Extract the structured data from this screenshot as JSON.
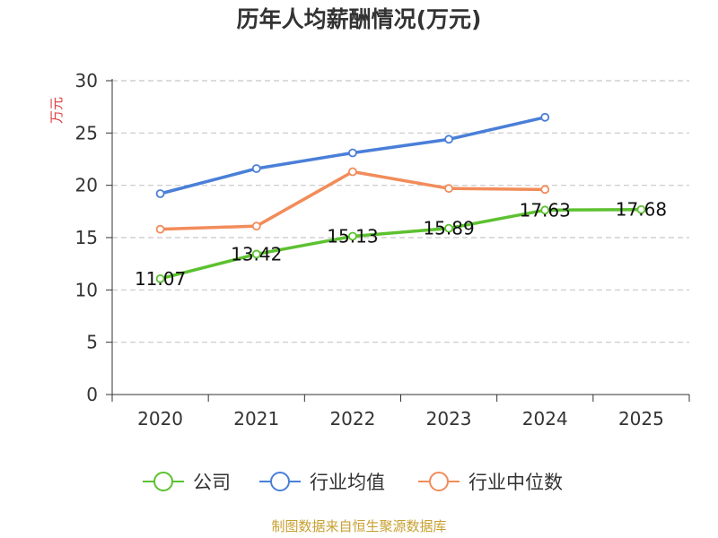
{
  "title": "历年人均薪酬情况(万元)",
  "source": "制图数据来自恒生聚源数据库",
  "chart_data": {
    "type": "line",
    "title": "历年人均薪酬情况(万元)",
    "xlabel": "",
    "ylabel": "万元",
    "categories": [
      "2020",
      "2021",
      "2022",
      "2023",
      "2024",
      "2025"
    ],
    "ylim": [
      0,
      30
    ],
    "yticks": [
      0,
      5,
      10,
      15,
      20,
      25,
      30
    ],
    "grid": true,
    "legend_position": "bottom",
    "series": [
      {
        "name": "公司",
        "color": "#5cc130",
        "values": [
          11.07,
          13.42,
          15.13,
          15.89,
          17.63,
          17.68
        ],
        "labels": [
          "11.07",
          "13.42",
          "15.13",
          "15.89",
          "17.63",
          "17.68"
        ]
      },
      {
        "name": "行业均值",
        "color": "#4a7fd8",
        "values": [
          19.2,
          21.6,
          23.1,
          24.4,
          26.5,
          null
        ]
      },
      {
        "name": "行业中位数",
        "color": "#f28c5a",
        "values": [
          15.8,
          16.1,
          21.3,
          19.7,
          19.6,
          null
        ]
      }
    ]
  }
}
